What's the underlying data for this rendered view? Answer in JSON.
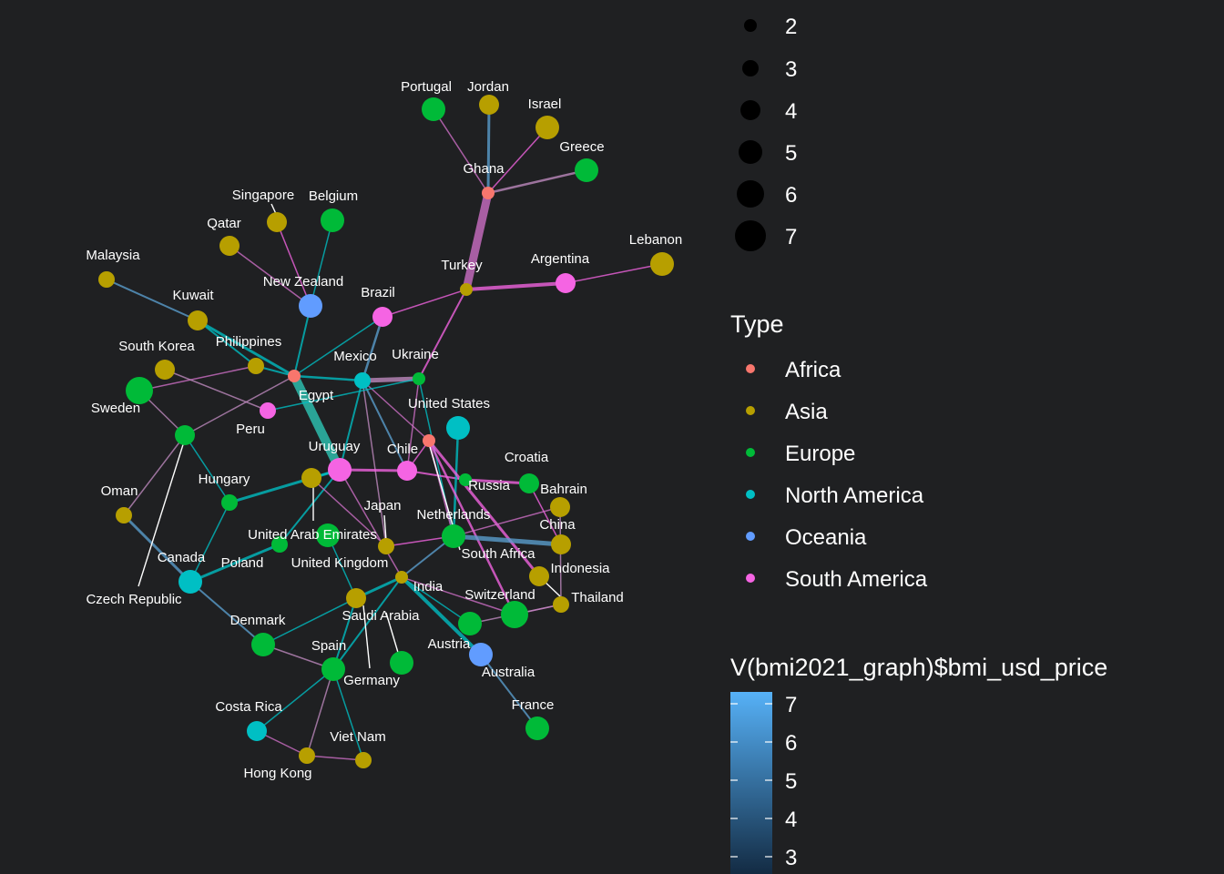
{
  "legend_size": {
    "items": [
      {
        "label": "2",
        "value": 2
      },
      {
        "label": "3",
        "value": 3
      },
      {
        "label": "4",
        "value": 4
      },
      {
        "label": "5",
        "value": 5
      },
      {
        "label": "6",
        "value": 6
      },
      {
        "label": "7",
        "value": 7
      }
    ]
  },
  "legend_type": {
    "title": "Type",
    "items": [
      {
        "label": "Africa",
        "color": "#f8766d"
      },
      {
        "label": "Asia",
        "color": "#b79f00"
      },
      {
        "label": "Europe",
        "color": "#00ba38"
      },
      {
        "label": "North America",
        "color": "#00bfc4"
      },
      {
        "label": "Oceania",
        "color": "#619cff"
      },
      {
        "label": "South America",
        "color": "#f564e3"
      }
    ]
  },
  "legend_colorbar": {
    "title": "V(bmi2021_graph)$bmi_usd_price",
    "ticks": [
      "7",
      "6",
      "5",
      "4",
      "3"
    ],
    "color_high": "#56b1f7",
    "color_low": "#132b43"
  },
  "nodes": [
    {
      "name": "Portugal",
      "type": "Europe",
      "size": 5
    },
    {
      "name": "Jordan",
      "type": "Asia",
      "size": 4
    },
    {
      "name": "Israel",
      "type": "Asia",
      "size": 5
    },
    {
      "name": "Greece",
      "type": "Europe",
      "size": 5
    },
    {
      "name": "Ghana",
      "type": "Africa",
      "size": 2
    },
    {
      "name": "Singapore",
      "type": "Asia",
      "size": 4
    },
    {
      "name": "Belgium",
      "type": "Europe",
      "size": 5
    },
    {
      "name": "Qatar",
      "type": "Asia",
      "size": 4
    },
    {
      "name": "Malaysia",
      "type": "Asia",
      "size": 3
    },
    {
      "name": "Lebanon",
      "type": "Asia",
      "size": 5
    },
    {
      "name": "Turkey",
      "type": "Asia",
      "size": 2
    },
    {
      "name": "Argentina",
      "type": "South America",
      "size": 4
    },
    {
      "name": "New Zealand",
      "type": "Oceania",
      "size": 5
    },
    {
      "name": "Kuwait",
      "type": "Asia",
      "size": 4
    },
    {
      "name": "Brazil",
      "type": "South America",
      "size": 4
    },
    {
      "name": "South Korea",
      "type": "Asia",
      "size": 4
    },
    {
      "name": "Philippines",
      "type": "Asia",
      "size": 3
    },
    {
      "name": "Mexico",
      "type": "North America",
      "size": 3
    },
    {
      "name": "Ukraine",
      "type": "Europe",
      "size": 2
    },
    {
      "name": "Sweden",
      "type": "Europe",
      "size": 6
    },
    {
      "name": "Egypt",
      "type": "Africa",
      "size": 2
    },
    {
      "name": "Peru",
      "type": "South America",
      "size": 3
    },
    {
      "name": "United States",
      "type": "North America",
      "size": 5
    },
    {
      "name": "Uruguay",
      "type": "South America",
      "size": 5
    },
    {
      "name": "Chile",
      "type": "South America",
      "size": 4
    },
    {
      "name": "Croatia",
      "type": "Europe",
      "size": 4
    },
    {
      "name": "Russia",
      "type": "Europe",
      "size": 2
    },
    {
      "name": "Bahrain",
      "type": "Asia",
      "size": 4
    },
    {
      "name": "Oman",
      "type": "Asia",
      "size": 3
    },
    {
      "name": "Hungary",
      "type": "Europe",
      "size": 3
    },
    {
      "name": "Japan",
      "type": "Asia",
      "size": 3
    },
    {
      "name": "Netherlands",
      "type": "Europe",
      "size": 5
    },
    {
      "name": "China",
      "type": "Asia",
      "size": 4
    },
    {
      "name": "United Arab Emirates",
      "type": "Asia",
      "size": 4
    },
    {
      "name": "South Africa",
      "type": "Africa",
      "size": 2
    },
    {
      "name": "Canada",
      "type": "North America",
      "size": 5
    },
    {
      "name": "Poland",
      "type": "Europe",
      "size": 3
    },
    {
      "name": "United Kingdom",
      "type": "Europe",
      "size": 5
    },
    {
      "name": "Indonesia",
      "type": "Asia",
      "size": 4
    },
    {
      "name": "Czech Republic",
      "type": "Europe",
      "size": 4
    },
    {
      "name": "India",
      "type": "Asia",
      "size": 2
    },
    {
      "name": "Thailand",
      "type": "Asia",
      "size": 3
    },
    {
      "name": "Switzerland",
      "type": "Europe",
      "size": 6
    },
    {
      "name": "Saudi Arabia",
      "type": "Asia",
      "size": 4
    },
    {
      "name": "Denmark",
      "type": "Europe",
      "size": 5
    },
    {
      "name": "Austria",
      "type": "Europe",
      "size": 5
    },
    {
      "name": "Australia",
      "type": "Oceania",
      "size": 5
    },
    {
      "name": "Spain",
      "type": "Europe",
      "size": 5
    },
    {
      "name": "Germany",
      "type": "Europe",
      "size": 5
    },
    {
      "name": "France",
      "type": "Europe",
      "size": 5
    },
    {
      "name": "Costa Rica",
      "type": "North America",
      "size": 4
    },
    {
      "name": "Viet Nam",
      "type": "Asia",
      "size": 3
    },
    {
      "name": "Hong Kong",
      "type": "Asia",
      "size": 3
    }
  ],
  "edge_colors": [
    "#f564e3",
    "#00bfc4",
    "#5b9fcf",
    "#c08ac0",
    "#2ec9b8",
    "#d070c8",
    "#56b1f7"
  ]
}
